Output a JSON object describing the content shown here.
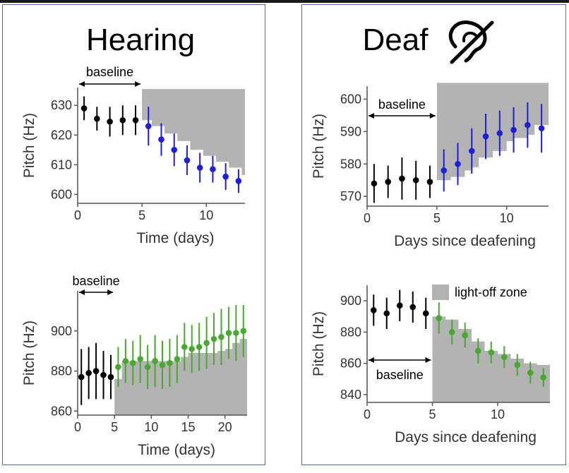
{
  "titles": {
    "hearing": "Hearing",
    "deaf": "Deaf"
  },
  "legend": {
    "light_off": "light-off zone"
  },
  "colors": {
    "baseline": "#000000",
    "blue": "#1f1fd6",
    "green": "#4aa832",
    "zone": "#b3b3b3",
    "axis": "#555555"
  },
  "icons": {
    "deaf": "deaf-ear-icon"
  },
  "chart_data": [
    {
      "id": "hearing-top",
      "type": "scatter",
      "title": "",
      "xlabel": "Time (days)",
      "ylabel": "Pitch (Hz)",
      "xlim": [
        0,
        13
      ],
      "ylim": [
        597,
        636
      ],
      "xticks": [
        0,
        5,
        10
      ],
      "yticks": [
        600,
        610,
        620,
        630
      ],
      "annotation": "baseline",
      "annotation_range": [
        0,
        5
      ],
      "zone": {
        "x": [
          5,
          5.75,
          6.75,
          7.75,
          8.75,
          9.75,
          10.75,
          11.75,
          12.75
        ],
        "y_lower": [
          625,
          623,
          620.5,
          618,
          615,
          613,
          611,
          609,
          606.5
        ],
        "y_top": 635.5
      },
      "series": [
        {
          "color_key": "baseline",
          "x": [
            0.5,
            1.5,
            2.5,
            3.5,
            4.5
          ],
          "y": [
            629,
            625.5,
            624.5,
            625,
            625
          ],
          "err": [
            4,
            4,
            5,
            5,
            5
          ]
        },
        {
          "color_key": "blue",
          "x": [
            5.5,
            6.5,
            7.5,
            8.5,
            9.5,
            10.5,
            11.5,
            12.5
          ],
          "y": [
            623,
            618.5,
            615,
            611.5,
            609,
            608.5,
            606,
            604.5
          ],
          "err": [
            6.5,
            5.5,
            5.5,
            5,
            5,
            4.5,
            4.5,
            4
          ]
        }
      ]
    },
    {
      "id": "hearing-bottom",
      "type": "scatter",
      "title": "",
      "xlabel": "Time (days)",
      "ylabel": "Pitch (Hz)",
      "xlim": [
        0,
        23
      ],
      "ylim": [
        858,
        920
      ],
      "xticks": [
        0,
        5,
        10,
        15,
        20
      ],
      "yticks": [
        860,
        880,
        900
      ],
      "annotation": "baseline",
      "annotation_range": [
        0,
        5
      ],
      "zone": {
        "x": [
          5,
          6,
          7,
          8,
          9,
          10,
          11,
          12,
          13,
          14,
          15,
          16,
          17,
          18,
          19,
          20,
          21,
          22,
          23
        ],
        "y_lower": [
          876,
          885,
          885,
          885,
          885,
          885,
          885,
          885,
          885,
          887,
          889,
          889,
          889,
          889,
          890,
          891,
          894,
          896,
          896
        ],
        "y_top": null
      },
      "series": [
        {
          "color_key": "baseline",
          "x": [
            0.5,
            1.5,
            2.5,
            3.5,
            4.5
          ],
          "y": [
            877,
            879,
            880,
            878,
            877
          ],
          "err": [
            14,
            13,
            14,
            12,
            11
          ]
        },
        {
          "color_key": "green",
          "x": [
            5.5,
            6.5,
            7.5,
            8.5,
            9.5,
            10.5,
            11.5,
            12.5,
            13.5,
            14.5,
            15.5,
            16.5,
            17.5,
            18.5,
            19.5,
            20.5,
            21.5,
            22.5
          ],
          "y": [
            882,
            885,
            884,
            886,
            882,
            885,
            883,
            884,
            886,
            892,
            891,
            892,
            894,
            896,
            897,
            899,
            899,
            900
          ],
          "err": [
            10,
            11,
            11,
            12,
            11,
            13,
            12,
            12,
            12,
            12,
            12,
            12,
            13,
            13,
            14,
            13,
            14,
            13
          ]
        }
      ]
    },
    {
      "id": "deaf-top",
      "type": "scatter",
      "title": "",
      "xlabel": "Days since deafening",
      "ylabel": "Pitch (Hz)",
      "xlim": [
        0,
        13
      ],
      "ylim": [
        567,
        604
      ],
      "xticks": [
        0,
        5,
        10
      ],
      "yticks": [
        570,
        580,
        590,
        600
      ],
      "annotation": "baseline",
      "annotation_range": [
        0,
        5
      ],
      "zone": {
        "x": [
          5,
          6,
          7,
          7.5,
          8,
          9,
          10,
          10.5,
          11.5,
          12,
          13
        ],
        "y_lower": [
          575,
          576,
          578,
          579,
          582,
          584,
          587,
          588,
          589,
          592,
          592
        ],
        "y_top": 605
      },
      "series": [
        {
          "color_key": "baseline",
          "x": [
            0.5,
            1.5,
            2.5,
            3.5,
            4.5
          ],
          "y": [
            574,
            574.5,
            575.5,
            575,
            574.5
          ],
          "err": [
            6,
            5,
            6.5,
            6,
            5
          ]
        },
        {
          "color_key": "blue",
          "x": [
            5.5,
            6.5,
            7.5,
            8.5,
            9.5,
            10.5,
            11.5,
            12.5
          ],
          "y": [
            578,
            580,
            584,
            588.5,
            589.5,
            590.5,
            592,
            591
          ],
          "err": [
            6.5,
            6.5,
            7,
            7,
            7,
            7,
            7,
            7.5
          ]
        }
      ]
    },
    {
      "id": "deaf-bottom",
      "type": "scatter",
      "title": "",
      "xlabel": "Days since deafening",
      "ylabel": "Pitch (Hz)",
      "xlim": [
        0,
        14
      ],
      "ylim": [
        835,
        910
      ],
      "xticks": [
        0,
        5,
        10
      ],
      "yticks": [
        840,
        860,
        880,
        900
      ],
      "annotation": "baseline",
      "annotation_range": [
        0,
        5
      ],
      "zone": {
        "x": [
          5,
          6,
          7,
          8,
          9,
          10,
          11,
          12,
          13,
          14
        ],
        "y_lower": [
          890,
          888,
          882,
          874,
          868,
          866,
          863,
          860,
          859,
          854
        ],
        "y_top": null
      },
      "series": [
        {
          "color_key": "baseline",
          "x": [
            0.5,
            1.5,
            2.5,
            3.5,
            4.5
          ],
          "y": [
            894,
            892,
            897,
            896,
            892
          ],
          "err": [
            10,
            10,
            10,
            10,
            10
          ]
        },
        {
          "color_key": "green",
          "x": [
            5.5,
            6.5,
            7.5,
            8.5,
            9.5,
            10.5,
            11.5,
            12.5,
            13.5
          ],
          "y": [
            889,
            880,
            878,
            868,
            867,
            864,
            859,
            854,
            851
          ],
          "err": [
            10,
            8,
            8,
            8,
            7,
            7,
            7,
            7,
            6
          ]
        }
      ]
    }
  ]
}
